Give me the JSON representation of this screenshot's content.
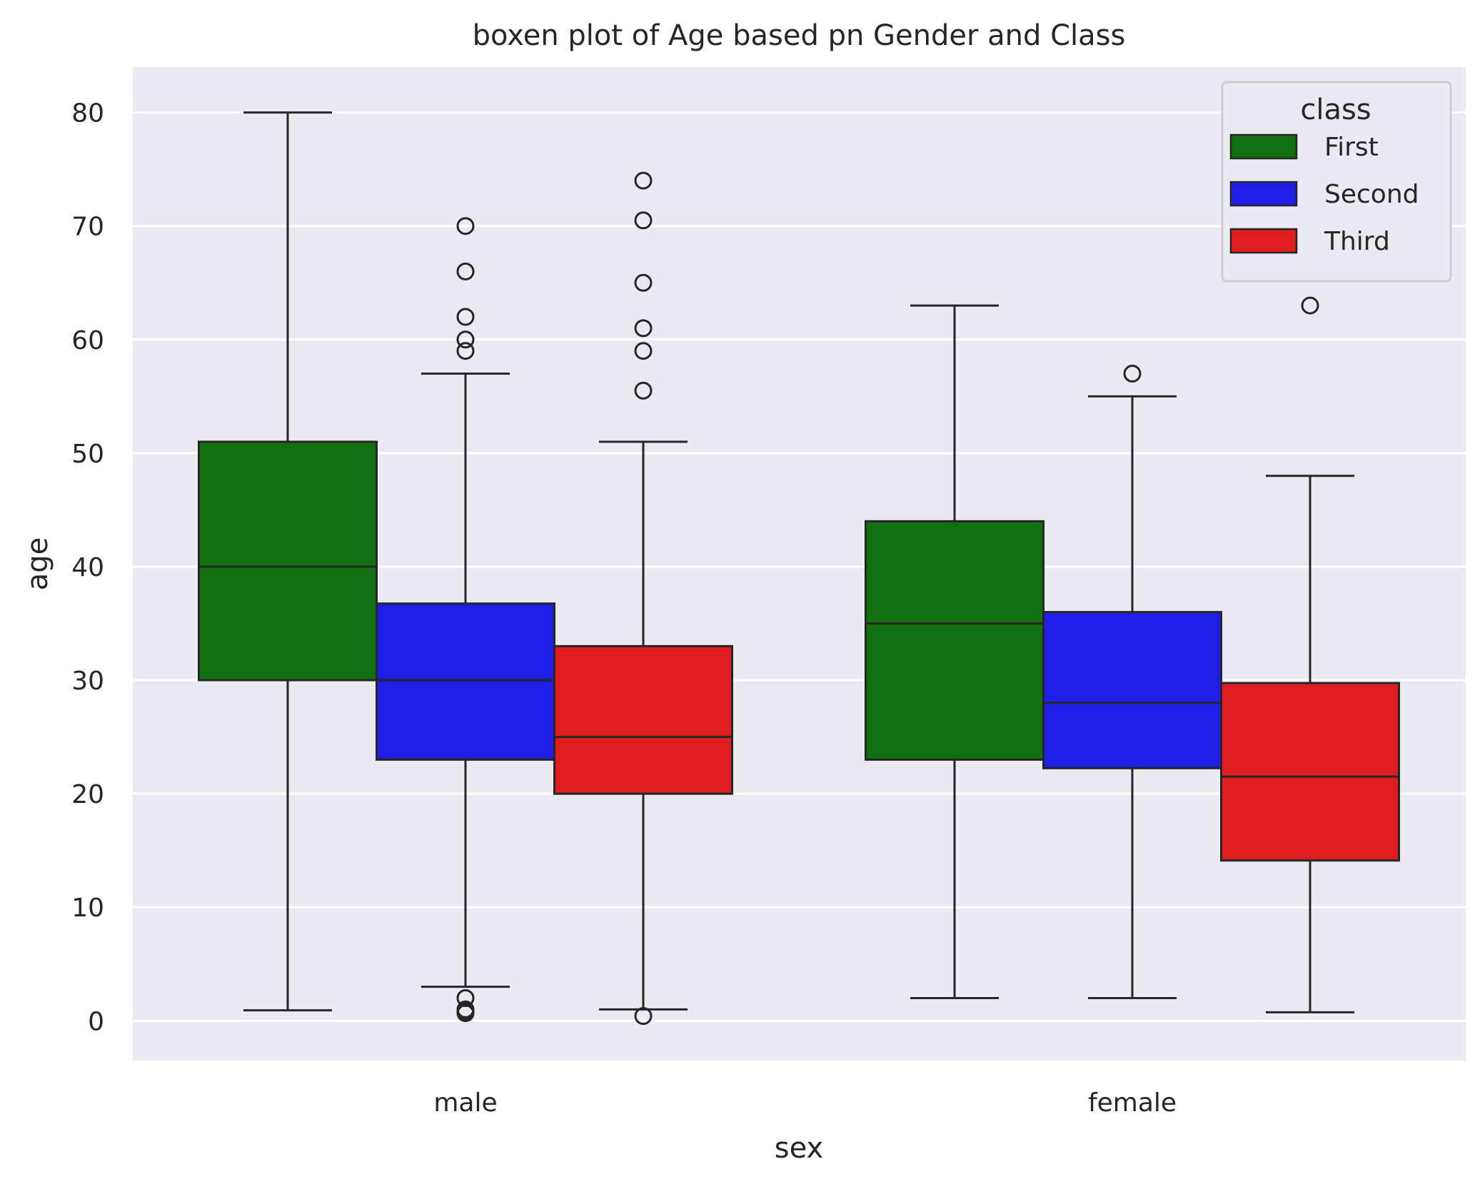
{
  "chart_data": {
    "type": "boxplot",
    "title": "boxen plot of Age based pn Gender and Class",
    "xlabel": "sex",
    "ylabel": "age",
    "ylim": [
      -3.5,
      84
    ],
    "yticks": [
      0,
      10,
      20,
      30,
      40,
      50,
      60,
      70,
      80
    ],
    "grid": true,
    "legend": {
      "title": "class",
      "position": "top-right"
    },
    "categories": [
      "male",
      "female"
    ],
    "series": [
      {
        "name": "First",
        "color": "#107010",
        "boxes": [
          {
            "category": "male",
            "whisker_low": 0.92,
            "q1": 30,
            "median": 40,
            "q3": 51,
            "whisker_high": 80,
            "outliers": []
          },
          {
            "category": "female",
            "whisker_low": 2,
            "q1": 23,
            "median": 35,
            "q3": 44,
            "whisker_high": 63,
            "outliers": []
          }
        ]
      },
      {
        "name": "Second",
        "color": "#1e1ee6",
        "boxes": [
          {
            "category": "male",
            "whisker_low": 3,
            "q1": 23,
            "median": 30,
            "q3": 36.75,
            "whisker_high": 57,
            "outliers": [
              0.67,
              0.83,
              1,
              2,
              59,
              60,
              62,
              66,
              70
            ]
          },
          {
            "category": "female",
            "whisker_low": 2,
            "q1": 22.25,
            "median": 28,
            "q3": 36,
            "whisker_high": 55,
            "outliers": [
              57
            ]
          }
        ]
      },
      {
        "name": "Third",
        "color": "#de1e1e",
        "boxes": [
          {
            "category": "male",
            "whisker_low": 1,
            "q1": 20,
            "median": 25,
            "q3": 33,
            "whisker_high": 51,
            "outliers": [
              0.42,
              55.5,
              59,
              61,
              65,
              70.5,
              74
            ]
          },
          {
            "category": "female",
            "whisker_low": 0.75,
            "q1": 14.12,
            "median": 21.5,
            "q3": 29.75,
            "whisker_high": 48,
            "outliers": [
              63
            ]
          }
        ]
      }
    ]
  }
}
